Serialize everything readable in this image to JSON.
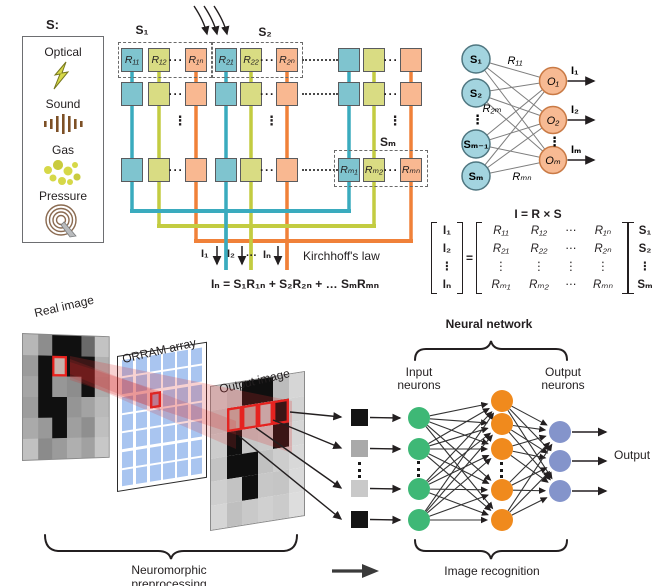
{
  "colors": {
    "teal_box": "#7fc4cf",
    "teal_line": "#3aabbe",
    "yellow_box": "#d9dc83",
    "yellow_line": "#c3cc41",
    "orange_box": "#f9b891",
    "orange_line": "#f08139",
    "sensor_node_fill": "#a3d4df",
    "sensor_node_border": "#4f7680",
    "output_node_fill": "#f7ba93",
    "output_node_border": "#c97a45",
    "green_neuron": "#3eb876",
    "orange_neuron": "#f08a1d",
    "blue_neuron": "#8494cb",
    "orram_cell": "#a9c5f0",
    "highlight_red": "#e8211d",
    "sound_brown": "#7d5026",
    "pressure_brown": "#8a6a50",
    "gas_yellow": "#d6d848"
  },
  "sensor_panel": {
    "title": "S:",
    "items": [
      {
        "label": "Optical",
        "icon": "lightning-icon"
      },
      {
        "label": "Sound",
        "icon": "sound-waves-icon"
      },
      {
        "label": "Gas",
        "icon": "gas-dots-icon"
      },
      {
        "label": "Pressure",
        "icon": "pressure-spiral-icon"
      }
    ]
  },
  "crossbar": {
    "top_group_labels": [
      "S₁",
      "S₂"
    ],
    "bottom_group_label": "Sₘ",
    "row1_labels": [
      [
        "R₁₁",
        "R₁₂",
        "R₁ₙ"
      ],
      [
        "R₂₁",
        "R₂₂",
        "R₂ₙ"
      ]
    ],
    "bottom_labels": [
      "Rₘ₁",
      "Rₘ₂",
      "Rₘₙ"
    ],
    "ellipsis": "···",
    "vdots": "⋮",
    "output_labels": [
      "I₁",
      "I₂",
      "Iₙ"
    ],
    "output_ellipsis": "···",
    "kirchhoff_label": "Kirchhoff's law",
    "kirchhoff_equation": "Iₙ = S₁R₁ₙ + S₂R₂ₙ + … SₘRₘₙ"
  },
  "graph": {
    "inputs": [
      "S₁",
      "S₂",
      "Sₘ₋₁",
      "Sₘ"
    ],
    "input_dots": "⋮",
    "outputs": [
      "O₁",
      "O₂",
      "Oₘ"
    ],
    "output_dots": "⋮",
    "edge_labels": [
      "R₁₁",
      "R₂ₘ",
      "Rₘₙ"
    ],
    "output_arrow_labels": [
      "I₁",
      "I₂",
      "Iₘ"
    ]
  },
  "matrix": {
    "title": "I = R × S",
    "i_vector": [
      "I₁",
      "I₂",
      "⋮",
      "Iₙ"
    ],
    "equals": "=",
    "r_matrix": [
      [
        "R₁₁",
        "R₁₂",
        "⋯",
        "R₁ₙ"
      ],
      [
        "R₂₁",
        "R₂₂",
        "⋯",
        "R₂ₙ"
      ],
      [
        "⋮",
        "⋮",
        "⋮",
        "⋮"
      ],
      [
        "Rₘ₁",
        "Rₘ₂",
        "⋯",
        "Rₘₙ"
      ]
    ],
    "s_vector": [
      "S₁",
      "S₂",
      "⋮",
      "Sₘ"
    ]
  },
  "pipeline": {
    "real_image": {
      "label": "Real image",
      "red_cell": [
        1,
        2
      ],
      "grid": [
        [
          "#b7b7b7",
          "#8d8d8d",
          "#101010",
          "#101010",
          "#6a6a6a",
          "#c3c3c3"
        ],
        [
          "#9b9b9b",
          "#101010",
          "#c7b4ae",
          "#101010",
          "#101010",
          "#b1b1b1"
        ],
        [
          "#a5a5a5",
          "#101010",
          "#979797",
          "#8d8d8d",
          "#101010",
          "#adadad"
        ],
        [
          "#9d9d9d",
          "#101010",
          "#101010",
          "#959595",
          "#a3a3a3",
          "#b9b9b9"
        ],
        [
          "#aaaaaa",
          "#999999",
          "#101010",
          "#9f9f9f",
          "#8f8f8f",
          "#bfbfbf"
        ],
        [
          "#c1c1c1",
          "#8b8b8b",
          "#9b9b9b",
          "#afafaf",
          "#a1a1a1",
          "#c7c7c7"
        ]
      ]
    },
    "orram": {
      "label": "ORRAM array",
      "rows": 7,
      "cols": 6,
      "red_cell": [
        2,
        2
      ]
    },
    "output_image": {
      "label": "Output image",
      "red_cells": [
        [
          1,
          1
        ],
        [
          1,
          2
        ],
        [
          1,
          3
        ],
        [
          1,
          4
        ]
      ],
      "grid": [
        [
          "#d2d2d2",
          "#c5c5c5",
          "#0f0f0f",
          "#0f0f0f",
          "#bcbcbc",
          "#d6d6d6"
        ],
        [
          "#c8c8c8",
          "#c2b2ac",
          "#bdb0aa",
          "#c6c6c6",
          "#0f0f0f",
          "#d2d2d2"
        ],
        [
          "#cccccc",
          "#0f0f0f",
          "#c6c6c6",
          "#c9c9c9",
          "#0f0f0f",
          "#d6d6d6"
        ],
        [
          "#c4c4c4",
          "#0f0f0f",
          "#0f0f0f",
          "#c1c1c1",
          "#cdcdcd",
          "#d8d8d8"
        ],
        [
          "#cfcfcf",
          "#c3c3c3",
          "#0f0f0f",
          "#c7c7c7",
          "#c5c5c5",
          "#dadada"
        ],
        [
          "#d5d5d5",
          "#bfbfbf",
          "#c9c9c9",
          "#d0d0d0",
          "#cbcbcb",
          "#dddddd"
        ]
      ]
    },
    "brace_label": "Neuromorphic preprocessing"
  },
  "network": {
    "title": "Neural network",
    "input_label": "Input neurons",
    "output_label": "Output neurons",
    "output_arrow_label": "Output",
    "brace_label": "Image recognition",
    "input_squares": [
      "#141414",
      "#a9a9a9",
      "#c9c9c9",
      "#141414"
    ]
  }
}
